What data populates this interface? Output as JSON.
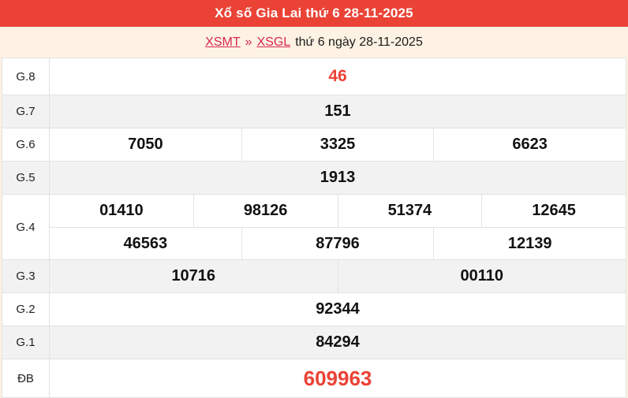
{
  "header": {
    "title": "Xổ số Gia Lai thứ 6 28-11-2025"
  },
  "breadcrumb": {
    "region_link": "XSMT",
    "separator": "»",
    "draw_link": "XSGL",
    "date_text": "thứ 6 ngày 28-11-2025"
  },
  "colors": {
    "header_bg": "#ea4336",
    "page_bg": "#fdf2e3",
    "accent_red": "#ec4136",
    "link_red": "#d92550",
    "row_alt_bg": "#f2f2f2",
    "border": "#e2e2e2",
    "number_black": "#111111"
  },
  "results_table": {
    "rows": [
      {
        "key": "g8",
        "label": "G.8",
        "highlight": true,
        "special": false,
        "groups": [
          [
            "46"
          ]
        ]
      },
      {
        "key": "g7",
        "label": "G.7",
        "highlight": false,
        "special": false,
        "groups": [
          [
            "151"
          ]
        ]
      },
      {
        "key": "g6",
        "label": "G.6",
        "highlight": false,
        "special": false,
        "groups": [
          [
            "7050",
            "3325",
            "6623"
          ]
        ]
      },
      {
        "key": "g5",
        "label": "G.5",
        "highlight": false,
        "special": false,
        "groups": [
          [
            "1913"
          ]
        ]
      },
      {
        "key": "g4",
        "label": "G.4",
        "highlight": false,
        "special": false,
        "groups": [
          [
            "01410",
            "98126",
            "51374",
            "12645"
          ],
          [
            "46563",
            "87796",
            "12139"
          ]
        ]
      },
      {
        "key": "g3",
        "label": "G.3",
        "highlight": false,
        "special": false,
        "groups": [
          [
            "10716",
            "00110"
          ]
        ]
      },
      {
        "key": "g2",
        "label": "G.2",
        "highlight": false,
        "special": false,
        "groups": [
          [
            "92344"
          ]
        ]
      },
      {
        "key": "g1",
        "label": "G.1",
        "highlight": false,
        "special": false,
        "groups": [
          [
            "84294"
          ]
        ]
      },
      {
        "key": "db",
        "label": "ĐB",
        "highlight": true,
        "special": true,
        "groups": [
          [
            "609963"
          ]
        ]
      }
    ]
  }
}
